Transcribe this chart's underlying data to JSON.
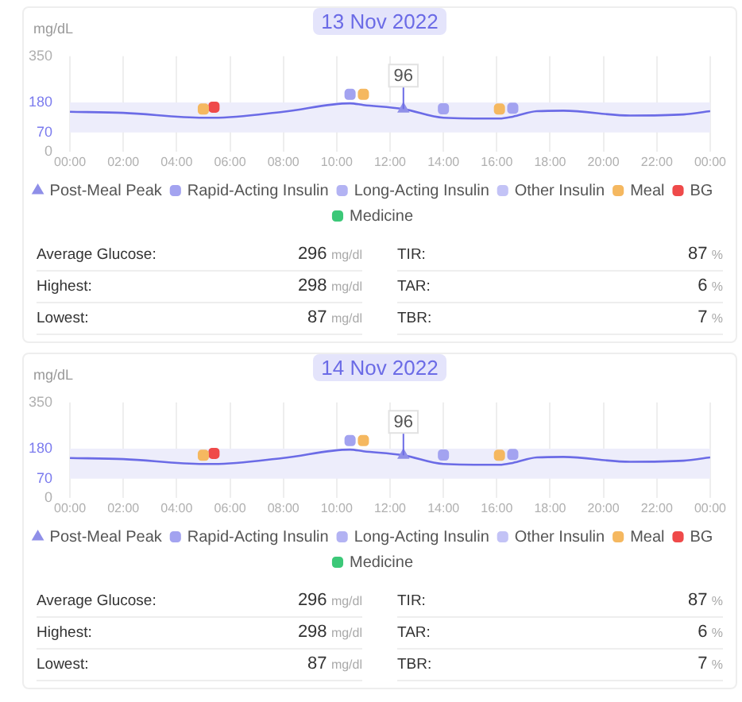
{
  "chart_data": [
    {
      "type": "line",
      "title": "13 Nov 2022",
      "ylabel": "mg/dL",
      "xlim": [
        0,
        24
      ],
      "xticks": [
        {
          "value": 0,
          "label": "00:00"
        },
        {
          "value": 2,
          "label": "02:00"
        },
        {
          "value": 4,
          "label": "04:00"
        },
        {
          "value": 6,
          "label": "06:00"
        },
        {
          "value": 8,
          "label": "08:00"
        },
        {
          "value": 10,
          "label": "10:00"
        },
        {
          "value": 12,
          "label": "12:00"
        },
        {
          "value": 14,
          "label": "14:00"
        },
        {
          "value": 16,
          "label": "16:00"
        },
        {
          "value": 18,
          "label": "18:00"
        },
        {
          "value": 20,
          "label": "20:00"
        },
        {
          "value": 22,
          "label": "22:00"
        },
        {
          "value": 24,
          "label": "00:00"
        }
      ],
      "ylim": [
        0,
        350
      ],
      "yticks": [
        0,
        70,
        180,
        350
      ],
      "grid": "x",
      "legend": "bottom",
      "bands": [
        {
          "axis": "y",
          "from": 70,
          "to": 180,
          "color": "#ededfb"
        }
      ],
      "annotations": [
        {
          "text": "96",
          "x": 12.5,
          "y": 156
        }
      ],
      "series": [
        {
          "type": "line",
          "color": "#6b6be6",
          "marker": "none",
          "x": [
            0,
            2,
            5,
            5.4,
            8,
            10.5,
            11,
            12.5,
            14,
            16.1,
            16.6,
            17.5,
            18.5,
            21,
            23,
            24
          ],
          "values": [
            146,
            142,
            124,
            124,
            146,
            177,
            171,
            156,
            124,
            121,
            128,
            148,
            150,
            132,
            136,
            148
          ]
        },
        {
          "type": "scatter",
          "name": "Post-Meal Peak",
          "color": "#8f8fe8",
          "marker": "triangle",
          "x": [
            12.5
          ],
          "values": [
            156
          ]
        },
        {
          "type": "scatter",
          "name": "Rapid-Acting Insulin",
          "color": "#a3a3f0",
          "marker": "square",
          "x": [
            10.5,
            14,
            16.6
          ],
          "values": [
            210,
            157,
            159
          ]
        },
        {
          "type": "scatter",
          "name": "Long-Acting Insulin",
          "color": "#b3b3f3",
          "marker": "square"
        },
        {
          "type": "scatter",
          "name": "Other Insulin",
          "color": "#c3c3f6",
          "marker": "square"
        },
        {
          "type": "scatter",
          "name": "Meal",
          "color": "#f5b860",
          "marker": "square",
          "x": [
            5,
            11,
            16.1
          ],
          "values": [
            156,
            210,
            156
          ]
        },
        {
          "type": "scatter",
          "name": "BG",
          "color": "#ef4a4a",
          "marker": "square",
          "x": [
            5.4
          ],
          "values": [
            163
          ]
        },
        {
          "type": "scatter",
          "name": "Medicine",
          "color": "#3cc878",
          "marker": "square"
        }
      ]
    },
    {
      "type": "other",
      "annotations": [
        "Average Glucose:",
        "296",
        "mg/dl",
        "TIR:",
        "87",
        "%",
        "Highest:",
        "298",
        "mg/dl",
        "TAR:",
        "6",
        "%",
        "Lowest:",
        "87",
        "mg/dl",
        "TBR:",
        "7",
        "%"
      ]
    },
    {
      "type": "line",
      "title": "14 Nov 2022",
      "ylabel": "mg/dL",
      "xlim": [
        0,
        24
      ],
      "xticks": [
        {
          "value": 0,
          "label": "00:00"
        },
        {
          "value": 2,
          "label": "02:00"
        },
        {
          "value": 4,
          "label": "04:00"
        },
        {
          "value": 6,
          "label": "06:00"
        },
        {
          "value": 8,
          "label": "08:00"
        },
        {
          "value": 10,
          "label": "10:00"
        },
        {
          "value": 12,
          "label": "12:00"
        },
        {
          "value": 14,
          "label": "14:00"
        },
        {
          "value": 16,
          "label": "16:00"
        },
        {
          "value": 18,
          "label": "18:00"
        },
        {
          "value": 20,
          "label": "20:00"
        },
        {
          "value": 22,
          "label": "22:00"
        },
        {
          "value": 24,
          "label": "00:00"
        }
      ],
      "ylim": [
        0,
        350
      ],
      "yticks": [
        0,
        70,
        180,
        350
      ],
      "grid": "x",
      "legend": "bottom",
      "bands": [
        {
          "axis": "y",
          "from": 70,
          "to": 180,
          "color": "#ededfb"
        }
      ],
      "annotations": [
        {
          "text": "96",
          "x": 12.5,
          "y": 156
        }
      ],
      "series": [
        {
          "type": "line",
          "color": "#6b6be6",
          "marker": "none",
          "x": [
            0,
            2,
            5,
            5.4,
            8,
            10.5,
            11,
            12.5,
            14,
            16.1,
            16.6,
            17.5,
            18.5,
            21,
            23,
            24
          ],
          "values": [
            146,
            142,
            124,
            124,
            146,
            177,
            171,
            156,
            124,
            121,
            128,
            148,
            150,
            132,
            136,
            148
          ]
        },
        {
          "type": "scatter",
          "name": "Post-Meal Peak",
          "color": "#8f8fe8",
          "marker": "triangle",
          "x": [
            12.5
          ],
          "values": [
            156
          ]
        },
        {
          "type": "scatter",
          "name": "Rapid-Acting Insulin",
          "color": "#a3a3f0",
          "marker": "square",
          "x": [
            10.5,
            14,
            16.6
          ],
          "values": [
            210,
            157,
            159
          ]
        },
        {
          "type": "scatter",
          "name": "Long-Acting Insulin",
          "color": "#b3b3f3",
          "marker": "square"
        },
        {
          "type": "scatter",
          "name": "Other Insulin",
          "color": "#c3c3f6",
          "marker": "square"
        },
        {
          "type": "scatter",
          "name": "Meal",
          "color": "#f5b860",
          "marker": "square",
          "x": [
            5,
            11,
            16.1
          ],
          "values": [
            156,
            210,
            156
          ]
        },
        {
          "type": "scatter",
          "name": "BG",
          "color": "#ef4a4a",
          "marker": "square",
          "x": [
            5.4
          ],
          "values": [
            163
          ]
        },
        {
          "type": "scatter",
          "name": "Medicine",
          "color": "#3cc878",
          "marker": "square"
        }
      ]
    },
    {
      "type": "other",
      "annotations": [
        "Average Glucose:",
        "296",
        "mg/dl",
        "TIR:",
        "87",
        "%",
        "Highest:",
        "298",
        "mg/dl",
        "TAR:",
        "6",
        "%",
        "Lowest:",
        "87",
        "mg/dl",
        "TBR:",
        "7",
        "%"
      ]
    }
  ]
}
